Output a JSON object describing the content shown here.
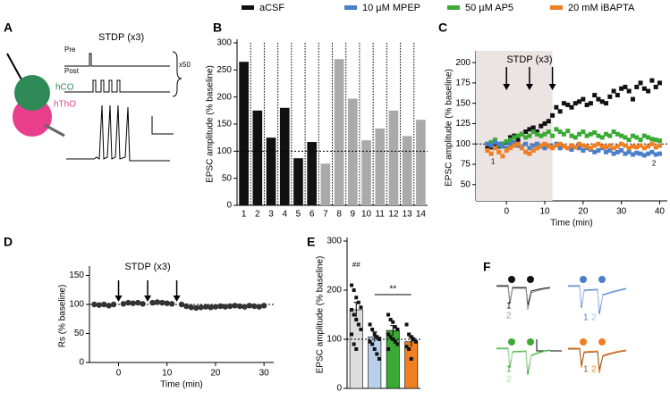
{
  "legend": [
    {
      "name": "aCSF",
      "color": "#111111"
    },
    {
      "name": "10 µM MPEP",
      "color": "#4a7fc9"
    },
    {
      "name": "50 µM AP5",
      "color": "#3aaa35"
    },
    {
      "name": "20 mM iBAPTA",
      "color": "#f07f22"
    }
  ],
  "panel_a": {
    "label": "A",
    "title": "STDP (x3)",
    "pre": "Pre",
    "post": "Post",
    "repeat": "x50",
    "cell_1": "hCO",
    "cell_2": "hThO"
  },
  "panel_f": {
    "label": "F",
    "traces": [
      {
        "labels": [
          "1",
          "2"
        ]
      },
      {
        "labels": [
          "1",
          "2"
        ]
      },
      {
        "labels": [
          "1",
          "2"
        ]
      },
      {
        "labels": [
          "1",
          "2"
        ]
      }
    ]
  },
  "chart_data": [
    {
      "type": "bar",
      "label": "B",
      "ylabel": "EPSC amplitude (% baseline)",
      "categories": [
        "1",
        "2",
        "3",
        "4",
        "5",
        "6",
        "7",
        "8",
        "9",
        "10",
        "11",
        "12",
        "13",
        "14"
      ],
      "values": [
        265,
        175,
        125,
        180,
        87,
        117,
        77,
        270,
        197,
        120,
        142,
        175,
        128,
        158
      ],
      "colors": [
        "#111111",
        "#111111",
        "#111111",
        "#111111",
        "#111111",
        "#111111",
        "#aaaaaa",
        "#aaaaaa",
        "#aaaaaa",
        "#aaaaaa",
        "#aaaaaa",
        "#aaaaaa",
        "#aaaaaa",
        "#aaaaaa"
      ],
      "ylim": [
        0,
        300
      ],
      "yticks": [
        0,
        50,
        100,
        150,
        200,
        250,
        300
      ],
      "ref_line": 100
    },
    {
      "type": "scatter",
      "label": "C",
      "ylabel": "EPSC amplitude (% baseline)",
      "xlabel": "Time (min)",
      "annotations": [
        "STDP (x3)",
        "1",
        "2"
      ],
      "x": [
        -5,
        -4,
        -3,
        -2,
        -1,
        0,
        1,
        2,
        3,
        4,
        5,
        6,
        7,
        8,
        9,
        10,
        11,
        12,
        13,
        14,
        15,
        16,
        17,
        18,
        19,
        20,
        21,
        22,
        23,
        24,
        25,
        26,
        27,
        28,
        29,
        30,
        31,
        32,
        33,
        34,
        35,
        36,
        37,
        38,
        39,
        40
      ],
      "series": [
        {
          "name": "aCSF",
          "color": "#111111",
          "values": [
            95,
            96,
            98,
            97,
            100,
            102,
            108,
            110,
            105,
            112,
            115,
            118,
            120,
            115,
            122,
            125,
            128,
            135,
            145,
            140,
            150,
            148,
            145,
            150,
            152,
            155,
            148,
            150,
            160,
            155,
            152,
            150,
            158,
            165,
            160,
            168,
            170,
            165,
            155,
            170,
            175,
            168,
            165,
            178,
            170,
            175
          ]
        },
        {
          "name": "50 µM AP5",
          "color": "#3aaa35",
          "values": [
            100,
            102,
            105,
            98,
            100,
            103,
            105,
            108,
            110,
            112,
            108,
            110,
            115,
            112,
            110,
            112,
            115,
            110,
            118,
            115,
            112,
            116,
            110,
            108,
            112,
            115,
            110,
            112,
            114,
            110,
            108,
            112,
            110,
            115,
            112,
            110,
            108,
            105,
            110,
            108,
            105,
            110,
            108,
            106,
            105,
            104
          ]
        },
        {
          "name": "10 µM MPEP",
          "color": "#4a7fc9",
          "values": [
            100,
            98,
            102,
            100,
            97,
            95,
            100,
            102,
            98,
            96,
            100,
            95,
            98,
            100,
            97,
            95,
            98,
            96,
            100,
            95,
            97,
            95,
            93,
            96,
            95,
            92,
            95,
            93,
            90,
            92,
            95,
            90,
            92,
            88,
            90,
            92,
            88,
            90,
            87,
            89,
            88,
            86,
            88,
            90,
            87,
            88
          ]
        },
        {
          "name": "20 mM iBAPTA",
          "color": "#f07f22",
          "values": [
            92,
            88,
            95,
            90,
            85,
            92,
            95,
            98,
            100,
            95,
            90,
            88,
            92,
            95,
            98,
            100,
            97,
            95,
            98,
            100,
            97,
            95,
            98,
            96,
            100,
            98,
            97,
            95,
            98,
            100,
            97,
            96,
            98,
            95,
            97,
            100,
            98,
            95,
            97,
            96,
            98,
            95,
            97,
            100,
            96,
            98
          ]
        }
      ],
      "xlim": [
        -8,
        42
      ],
      "xticks": [
        0,
        10,
        20,
        30,
        40
      ],
      "ylim": [
        30,
        210
      ],
      "yticks": [
        50,
        75,
        100,
        125,
        150,
        175,
        200
      ],
      "ref_line": 100,
      "shade_x": [
        -8,
        12
      ],
      "arrows_x": [
        0,
        6,
        12
      ]
    },
    {
      "type": "line",
      "label": "D",
      "ylabel": "Rs (% baseline)",
      "xlabel": "Time (min)",
      "annotations": [
        "STDP (x3)"
      ],
      "x": [
        -5,
        -4,
        -3,
        -2,
        -1,
        0,
        1,
        2,
        3,
        4,
        5,
        6,
        7,
        8,
        9,
        10,
        11,
        12,
        13,
        14,
        15,
        16,
        17,
        18,
        19,
        20,
        21,
        22,
        23,
        24,
        25,
        26,
        27,
        28,
        29,
        30
      ],
      "values": [
        100,
        99,
        100,
        98,
        100,
        null,
        101,
        103,
        102,
        103,
        101,
        null,
        103,
        104,
        103,
        102,
        101,
        null,
        100,
        97,
        95,
        94,
        95,
        96,
        95,
        96,
        97,
        96,
        97,
        98,
        97,
        96,
        98,
        97,
        96,
        98
      ],
      "color": "#333333",
      "xlim": [
        -6,
        32
      ],
      "xticks": [
        0,
        10,
        20,
        30
      ],
      "ylim": [
        0,
        160
      ],
      "yticks": [
        0,
        50,
        100,
        150
      ],
      "ref_line": 100,
      "arrows_x": [
        0,
        6,
        12
      ]
    },
    {
      "type": "bar",
      "label": "E",
      "ylabel": "EPSC amplitude (% baseline)",
      "annotations": [
        "##",
        "**"
      ],
      "categories": [
        null,
        null,
        null,
        null
      ],
      "values": [
        160,
        105,
        118,
        95
      ],
      "errors": [
        15,
        10,
        10,
        10
      ],
      "colors": [
        "#dddddd",
        "#b9cfea",
        "#3aaa35",
        "#f07f22"
      ],
      "points": [
        [
          210,
          200,
          185,
          175,
          165,
          160,
          150,
          140,
          130,
          120,
          110,
          90,
          80
        ],
        [
          130,
          120,
          110,
          105,
          100,
          95,
          90,
          80,
          70,
          60
        ],
        [
          150,
          140,
          135,
          125,
          120,
          110,
          105,
          100,
          95,
          90,
          80
        ],
        [
          130,
          110,
          105,
          100,
          95,
          85,
          80,
          60
        ]
      ],
      "ylim": [
        0,
        300
      ],
      "yticks": [
        0,
        100,
        200,
        300
      ],
      "ref_line": 100
    }
  ]
}
